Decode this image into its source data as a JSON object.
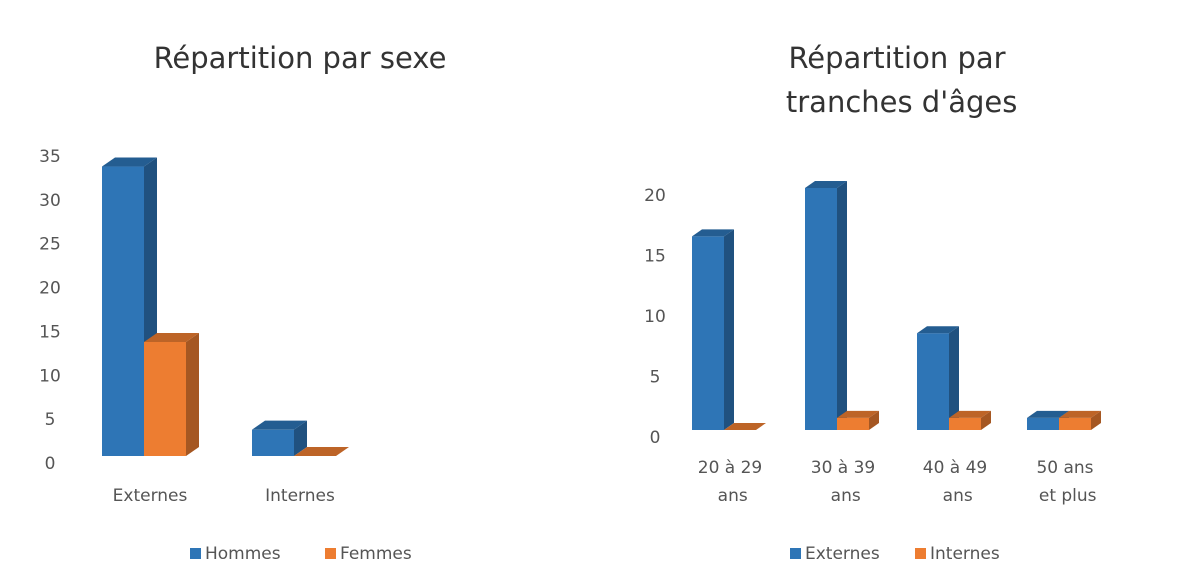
{
  "chart_data": [
    {
      "type": "bar3d",
      "title": "Répartition par sexe",
      "categories": [
        "Externes",
        "Internes"
      ],
      "series": [
        {
          "name": "Hommes",
          "color": "#2e75b6",
          "values": [
            33,
            3
          ]
        },
        {
          "name": "Femmes",
          "color": "#ed7d31",
          "values": [
            13,
            0
          ]
        }
      ],
      "ylim": [
        0,
        35
      ],
      "yticks": [
        0,
        5,
        10,
        15,
        20,
        25,
        30,
        35
      ]
    },
    {
      "type": "bar3d",
      "title": "Répartition par tranches d'âges",
      "categories": [
        "20 à 29 ans",
        "30 à 39 ans",
        "40 à 49 ans",
        "50 ans et plus"
      ],
      "series": [
        {
          "name": "Externes",
          "color": "#2e75b6",
          "values": [
            16,
            20,
            8,
            1
          ]
        },
        {
          "name": "Internes",
          "color": "#ed7d31",
          "values": [
            0,
            1,
            1,
            1
          ]
        }
      ],
      "ylim": [
        0,
        20
      ],
      "yticks": [
        0,
        5,
        10,
        15,
        20
      ]
    }
  ]
}
